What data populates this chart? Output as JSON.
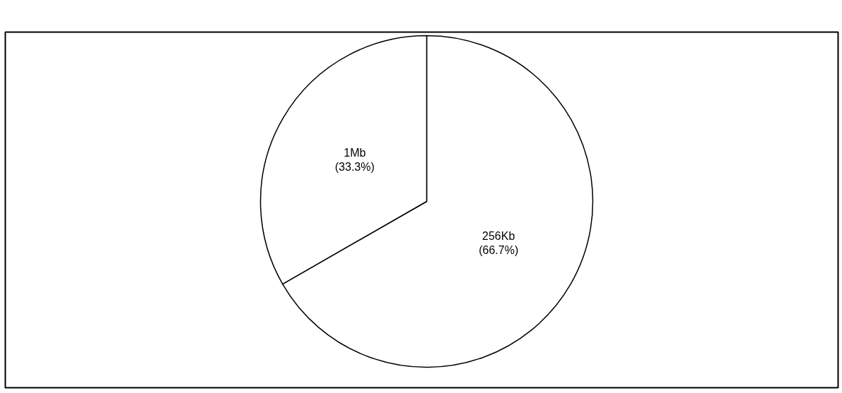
{
  "chart_data": {
    "type": "pie",
    "categories": [
      "256Kb",
      "1Mb"
    ],
    "values": [
      66.7,
      33.3
    ],
    "colors": [
      "#ffffff",
      "#ffffff"
    ],
    "value_labels": [
      "(66.7%)",
      "(33.3%)"
    ]
  }
}
